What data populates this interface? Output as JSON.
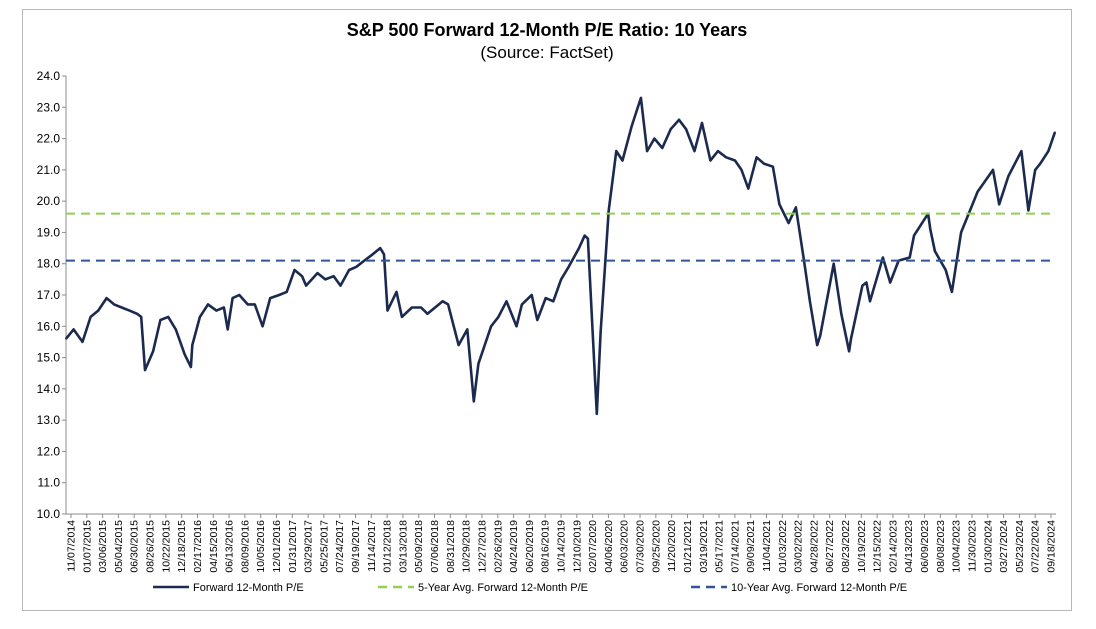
{
  "chart_data": {
    "type": "line",
    "title": "S&P 500 Forward 12-Month P/E Ratio: 10 Years",
    "subtitle": "(Source: FactSet)",
    "xlabel": "",
    "ylabel": "",
    "ylim": [
      10.0,
      24.0
    ],
    "yticks": [
      "10.0",
      "11.0",
      "12.0",
      "13.0",
      "14.0",
      "15.0",
      "16.0",
      "17.0",
      "18.0",
      "19.0",
      "20.0",
      "21.0",
      "22.0",
      "23.0",
      "24.0"
    ],
    "xticks": [
      "11/07/2014",
      "01/07/2015",
      "03/06/2015",
      "05/04/2015",
      "06/30/2015",
      "08/26/2015",
      "10/22/2015",
      "12/18/2015",
      "02/17/2016",
      "04/15/2016",
      "06/13/2016",
      "08/09/2016",
      "10/05/2016",
      "12/01/2016",
      "01/31/2017",
      "03/29/2017",
      "05/25/2017",
      "07/24/2017",
      "09/19/2017",
      "11/14/2017",
      "01/12/2018",
      "03/13/2018",
      "05/09/2018",
      "07/06/2018",
      "08/31/2018",
      "10/29/2018",
      "12/27/2018",
      "02/26/2019",
      "04/24/2019",
      "06/20/2019",
      "08/16/2019",
      "10/14/2019",
      "12/10/2019",
      "02/07/2020",
      "04/06/2020",
      "06/03/2020",
      "07/30/2020",
      "09/25/2020",
      "11/20/2020",
      "01/21/2021",
      "03/19/2021",
      "05/17/2021",
      "07/14/2021",
      "09/09/2021",
      "11/04/2021",
      "01/03/2022",
      "03/02/2022",
      "04/28/2022",
      "06/27/2022",
      "08/23/2022",
      "10/19/2022",
      "12/15/2022",
      "02/14/2023",
      "04/13/2023",
      "06/09/2023",
      "08/08/2023",
      "10/04/2023",
      "11/30/2023",
      "01/30/2024",
      "03/27/2024",
      "05/23/2024",
      "07/22/2024",
      "09/18/2024"
    ],
    "grid": false,
    "legend_position": "bottom",
    "series": [
      {
        "name": "Forward 12-Month P/E",
        "color": "#1b2a4e",
        "style": "solid",
        "points": [
          [
            "11/07/2014",
            15.6
          ],
          [
            "12/05/2014",
            15.9
          ],
          [
            "01/07/2015",
            15.5
          ],
          [
            "02/06/2015",
            16.3
          ],
          [
            "03/06/2015",
            16.5
          ],
          [
            "04/06/2015",
            16.9
          ],
          [
            "05/04/2015",
            16.7
          ],
          [
            "06/01/2015",
            16.6
          ],
          [
            "06/30/2015",
            16.5
          ],
          [
            "07/28/2015",
            16.4
          ],
          [
            "08/12/2015",
            16.3
          ],
          [
            "08/26/2015",
            14.6
          ],
          [
            "09/25/2015",
            15.2
          ],
          [
            "10/22/2015",
            16.2
          ],
          [
            "11/20/2015",
            16.3
          ],
          [
            "12/18/2015",
            15.9
          ],
          [
            "01/20/2016",
            15.1
          ],
          [
            "02/12/2016",
            14.7
          ],
          [
            "02/17/2016",
            15.4
          ],
          [
            "03/16/2016",
            16.3
          ],
          [
            "04/15/2016",
            16.7
          ],
          [
            "05/16/2016",
            16.5
          ],
          [
            "06/13/2016",
            16.6
          ],
          [
            "06/27/2016",
            15.9
          ],
          [
            "07/15/2016",
            16.9
          ],
          [
            "08/09/2016",
            17.0
          ],
          [
            "09/09/2016",
            16.7
          ],
          [
            "10/05/2016",
            16.7
          ],
          [
            "11/03/2016",
            16.0
          ],
          [
            "12/01/2016",
            16.9
          ],
          [
            "01/03/2017",
            17.0
          ],
          [
            "01/31/2017",
            17.1
          ],
          [
            "03/01/2017",
            17.8
          ],
          [
            "03/29/2017",
            17.6
          ],
          [
            "04/13/2017",
            17.3
          ],
          [
            "05/25/2017",
            17.7
          ],
          [
            "06/23/2017",
            17.5
          ],
          [
            "07/24/2017",
            17.6
          ],
          [
            "08/18/2017",
            17.3
          ],
          [
            "09/19/2017",
            17.8
          ],
          [
            "10/16/2017",
            17.9
          ],
          [
            "11/14/2017",
            18.1
          ],
          [
            "12/15/2017",
            18.3
          ],
          [
            "01/12/2018",
            18.5
          ],
          [
            "01/26/2018",
            18.3
          ],
          [
            "02/08/2018",
            16.5
          ],
          [
            "03/13/2018",
            17.1
          ],
          [
            "04/02/2018",
            16.3
          ],
          [
            "05/09/2018",
            16.6
          ],
          [
            "06/12/2018",
            16.6
          ],
          [
            "07/06/2018",
            16.4
          ],
          [
            "08/03/2018",
            16.6
          ],
          [
            "08/31/2018",
            16.8
          ],
          [
            "09/20/2018",
            16.7
          ],
          [
            "10/29/2018",
            15.4
          ],
          [
            "11/30/2018",
            15.9
          ],
          [
            "12/24/2018",
            13.6
          ],
          [
            "01/10/2019",
            14.8
          ],
          [
            "02/26/2019",
            16.0
          ],
          [
            "03/25/2019",
            16.3
          ],
          [
            "04/24/2019",
            16.8
          ],
          [
            "05/31/2019",
            16.0
          ],
          [
            "06/20/2019",
            16.7
          ],
          [
            "07/26/2019",
            17.0
          ],
          [
            "08/16/2019",
            16.2
          ],
          [
            "09/16/2019",
            16.9
          ],
          [
            "10/14/2019",
            16.8
          ],
          [
            "11/12/2019",
            17.5
          ],
          [
            "12/10/2019",
            17.9
          ],
          [
            "01/17/2020",
            18.5
          ],
          [
            "02/07/2020",
            18.9
          ],
          [
            "02/19/2020",
            18.8
          ],
          [
            "03/23/2020",
            13.2
          ],
          [
            "04/06/2020",
            15.8
          ],
          [
            "05/06/2020",
            19.7
          ],
          [
            "06/03/2020",
            21.6
          ],
          [
            "06/26/2020",
            21.3
          ],
          [
            "07/30/2020",
            22.4
          ],
          [
            "09/02/2020",
            23.3
          ],
          [
            "09/25/2020",
            21.6
          ],
          [
            "10/22/2020",
            22.0
          ],
          [
            "11/20/2020",
            21.7
          ],
          [
            "12/21/2020",
            22.3
          ],
          [
            "01/21/2021",
            22.6
          ],
          [
            "02/16/2021",
            22.3
          ],
          [
            "03/19/2021",
            21.6
          ],
          [
            "04/16/2021",
            22.5
          ],
          [
            "05/17/2021",
            21.3
          ],
          [
            "06/14/2021",
            21.6
          ],
          [
            "07/14/2021",
            21.4
          ],
          [
            "08/16/2021",
            21.3
          ],
          [
            "09/09/2021",
            21.0
          ],
          [
            "10/04/2021",
            20.4
          ],
          [
            "11/04/2021",
            21.4
          ],
          [
            "12/01/2021",
            21.2
          ],
          [
            "01/03/2022",
            21.1
          ],
          [
            "01/27/2022",
            19.9
          ],
          [
            "03/02/2022",
            19.3
          ],
          [
            "03/29/2022",
            19.8
          ],
          [
            "04/28/2022",
            18.1
          ],
          [
            "05/20/2022",
            16.8
          ],
          [
            "06/16/2022",
            15.4
          ],
          [
            "06/27/2022",
            15.7
          ],
          [
            "08/16/2022",
            18.0
          ],
          [
            "09/13/2022",
            16.4
          ],
          [
            "10/12/2022",
            15.2
          ],
          [
            "10/19/2022",
            15.6
          ],
          [
            "11/30/2022",
            17.3
          ],
          [
            "12/15/2022",
            17.4
          ],
          [
            "12/28/2022",
            16.8
          ],
          [
            "02/14/2023",
            18.2
          ],
          [
            "03/13/2023",
            17.4
          ],
          [
            "04/13/2023",
            18.1
          ],
          [
            "05/24/2023",
            18.2
          ],
          [
            "06/09/2023",
            18.9
          ],
          [
            "07/31/2023",
            19.6
          ],
          [
            "08/08/2023",
            19.1
          ],
          [
            "08/25/2023",
            18.4
          ],
          [
            "10/04/2023",
            17.8
          ],
          [
            "10/27/2023",
            17.1
          ],
          [
            "11/30/2023",
            19.0
          ],
          [
            "12/28/2023",
            19.6
          ],
          [
            "01/30/2024",
            20.3
          ],
          [
            "03/27/2024",
            21.0
          ],
          [
            "04/19/2024",
            19.9
          ],
          [
            "05/23/2024",
            20.8
          ],
          [
            "07/10/2024",
            21.6
          ],
          [
            "08/05/2024",
            19.7
          ],
          [
            "08/30/2024",
            21.0
          ],
          [
            "09/18/2024",
            21.2
          ],
          [
            "10/18/2024",
            21.6
          ],
          [
            "11/11/2024",
            22.2
          ]
        ]
      },
      {
        "name": "5-Year Avg. Forward 12-Month P/E",
        "color": "#92d050",
        "style": "dashed",
        "value": 19.6
      },
      {
        "name": "10-Year Avg. Forward 12-Month P/E",
        "color": "#2f5597",
        "style": "dashed",
        "value": 18.1
      }
    ]
  }
}
